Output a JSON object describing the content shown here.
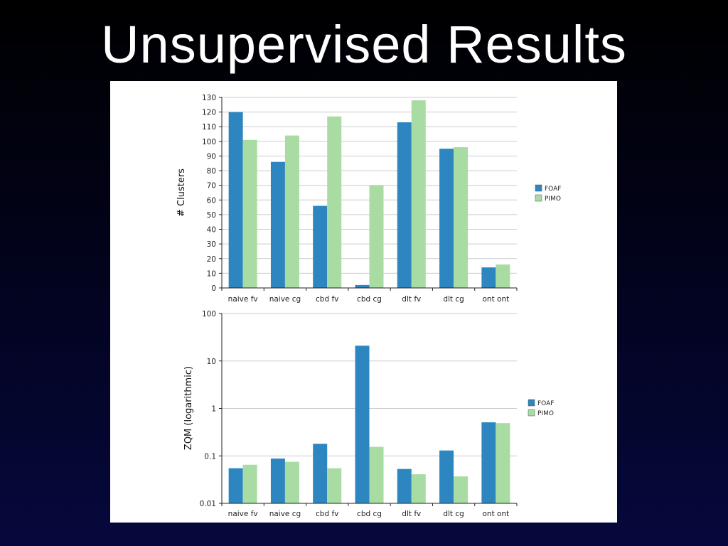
{
  "slide": {
    "title": "Unsupervised Results"
  },
  "colors": {
    "FOAF": "#2e86c1",
    "PIMO": "#a9dca3",
    "grid": "#cccccc",
    "axis": "#222222"
  },
  "chart_data": [
    {
      "type": "bar",
      "ylabel": "# Clusters",
      "yscale": "linear",
      "ylim": [
        0,
        130
      ],
      "yticks": [
        "0",
        "10",
        "20",
        "30",
        "40",
        "50",
        "60",
        "70",
        "80",
        "90",
        "100",
        "110",
        "120",
        "130"
      ],
      "grid": true,
      "legend_position": "right",
      "categories": [
        "naive fv",
        "naive cg",
        "cbd fv",
        "cbd cg",
        "dlt fv",
        "dlt cg",
        "ont ont"
      ],
      "series": [
        {
          "name": "FOAF",
          "values": [
            120,
            86,
            56,
            2,
            113,
            95,
            14
          ]
        },
        {
          "name": "PIMO",
          "values": [
            101,
            104,
            117,
            70,
            128,
            96,
            16
          ]
        }
      ]
    },
    {
      "type": "bar",
      "ylabel": "ZQM (logarithmic)",
      "yscale": "log",
      "ylim": [
        0.01,
        100
      ],
      "yticks": [
        "0.01",
        "0.1",
        "1",
        "10",
        "100"
      ],
      "grid": true,
      "legend_position": "right",
      "categories": [
        "naive fv",
        "naive cg",
        "cbd fv",
        "cbd cg",
        "dlt fv",
        "dlt cg",
        "ont ont"
      ],
      "series": [
        {
          "name": "FOAF",
          "values": [
            0.055,
            0.088,
            0.18,
            21,
            0.053,
            0.13,
            0.51
          ]
        },
        {
          "name": "PIMO",
          "values": [
            0.065,
            0.075,
            0.055,
            0.155,
            0.041,
            0.037,
            0.49
          ]
        }
      ]
    }
  ]
}
